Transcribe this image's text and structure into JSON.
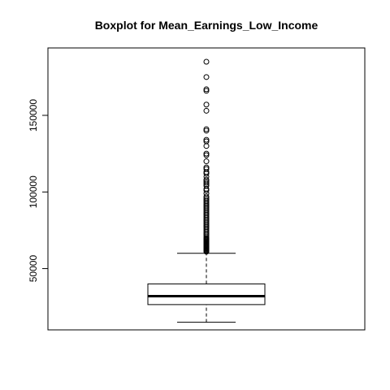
{
  "chart_data": {
    "type": "boxplot",
    "title": "Boxplot for  Mean_Earnings_Low_Income",
    "xlabel": "",
    "ylabel": "",
    "ylim": [
      10000,
      194000
    ],
    "yticks": [
      50000,
      100000,
      150000
    ],
    "ytick_labels": [
      "50000",
      "100000",
      "150000"
    ],
    "grid": false,
    "legend": "none",
    "box": {
      "whisker_low": 15000,
      "q1": 26500,
      "median": 32000,
      "q3": 40000,
      "whisker_high": 60000
    },
    "outliers": [
      61000,
      61500,
      62000,
      62500,
      63000,
      63500,
      64000,
      64500,
      65000,
      65500,
      66000,
      66500,
      67000,
      67500,
      68000,
      68500,
      69000,
      69500,
      70000,
      71000,
      72000,
      73000,
      74000,
      75000,
      76000,
      77000,
      78000,
      79000,
      80000,
      81000,
      82000,
      83000,
      84000,
      85000,
      86000,
      87000,
      88000,
      89000,
      90000,
      91000,
      92000,
      93000,
      94000,
      95000,
      96000,
      97000,
      99000,
      101000,
      102000,
      104000,
      105000,
      106000,
      107000,
      108000,
      110000,
      112000,
      113000,
      115000,
      116000,
      120000,
      124000,
      125000,
      130000,
      133000,
      134000,
      140000,
      141000,
      153000,
      157000,
      166000,
      167000,
      175000,
      185000
    ]
  },
  "colors": {
    "axis": "#000000",
    "whisker": "#000000",
    "box_fill": "#ffffff"
  }
}
